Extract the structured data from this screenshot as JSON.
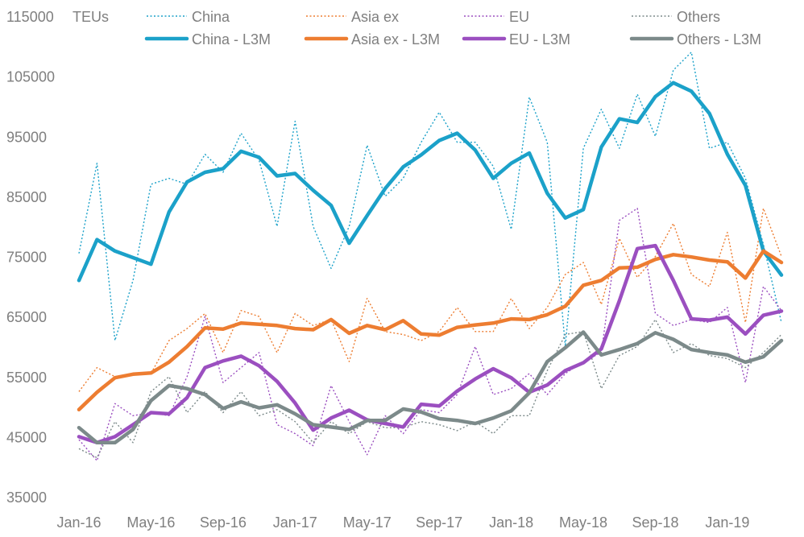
{
  "chart_data": {
    "type": "line",
    "unit_label": "TEUs",
    "ylim": [
      35000,
      115000
    ],
    "y_ticks": [
      35000,
      45000,
      55000,
      65000,
      75000,
      85000,
      95000,
      105000,
      115000
    ],
    "y_tick_labels": [
      "35000",
      "45000",
      "55000",
      "65000",
      "75000",
      "85000",
      "95000",
      "105000",
      "115000"
    ],
    "x_tick_labels": [
      "Jan-16",
      "May-16",
      "Sep-16",
      "Jan-17",
      "May-17",
      "Sep-17",
      "Jan-18",
      "May-18",
      "Sep-18",
      "Jan-19"
    ],
    "x_tick_index": [
      0,
      4,
      8,
      12,
      16,
      20,
      24,
      28,
      32,
      36
    ],
    "x": [
      "Jan-16",
      "Feb-16",
      "Mar-16",
      "Apr-16",
      "May-16",
      "Jun-16",
      "Jul-16",
      "Aug-16",
      "Sep-16",
      "Oct-16",
      "Nov-16",
      "Dec-16",
      "Jan-17",
      "Feb-17",
      "Mar-17",
      "Apr-17",
      "May-17",
      "Jun-17",
      "Jul-17",
      "Aug-17",
      "Sep-17",
      "Oct-17",
      "Nov-17",
      "Dec-17",
      "Jan-18",
      "Feb-18",
      "Mar-18",
      "Apr-18",
      "May-18",
      "Jun-18",
      "Jul-18",
      "Aug-18",
      "Sep-18",
      "Oct-18",
      "Nov-18",
      "Dec-18",
      "Jan-19",
      "Feb-19",
      "Mar-19",
      "Apr-19"
    ],
    "grid": false,
    "legend_position": "top",
    "series": [
      {
        "name": "China",
        "color": "#1ba1c9",
        "style": "dotted",
        "width": 1.4,
        "values": [
          75500,
          90500,
          61000,
          71000,
          87000,
          88000,
          87000,
          92000,
          89000,
          95500,
          91000,
          80000,
          97500,
          80000,
          73000,
          80000,
          93500,
          85000,
          88000,
          94000,
          99000,
          94000,
          94000,
          90000,
          79500,
          101500,
          94000,
          60000,
          93000,
          99500,
          93000,
          102000,
          95000,
          106000,
          109000,
          93000,
          94000,
          88000,
          77000,
          64000
        ]
      },
      {
        "name": "Asia ex",
        "color": "#ed7d31",
        "style": "dotted",
        "width": 1.4,
        "values": [
          52500,
          56500,
          55000,
          55500,
          55500,
          61000,
          63000,
          65500,
          59000,
          66000,
          65000,
          59000,
          65500,
          63500,
          64500,
          57500,
          68000,
          62500,
          62000,
          61000,
          62500,
          66500,
          62500,
          62500,
          68000,
          63000,
          66500,
          72000,
          74000,
          67000,
          78000,
          71500,
          75000,
          80500,
          72000,
          70000,
          79000,
          64000,
          83000,
          75000
        ]
      },
      {
        "name": "EU",
        "color": "#9b4fc0",
        "style": "dotted",
        "width": 1.4,
        "values": [
          44500,
          41000,
          50500,
          48500,
          49000,
          48500,
          55000,
          65000,
          54000,
          56500,
          59000,
          47000,
          45500,
          43500,
          53500,
          47500,
          42000,
          48500,
          45500,
          49500,
          49000,
          52000,
          60000,
          52000,
          53000,
          55500,
          52000,
          55500,
          57500,
          59000,
          81000,
          83000,
          65500,
          63500,
          64500,
          64000,
          66500,
          54000,
          70000,
          66000
        ]
      },
      {
        "name": "Others",
        "color": "#7c8a8a",
        "style": "dotted",
        "width": 1.4,
        "values": [
          43000,
          41500,
          47500,
          44000,
          52500,
          55000,
          49000,
          52500,
          49000,
          52500,
          48500,
          49500,
          47500,
          44000,
          47500,
          45500,
          47500,
          46500,
          46500,
          47500,
          47000,
          46000,
          47500,
          45500,
          48500,
          48500,
          56000,
          62000,
          62500,
          53000,
          58500,
          60000,
          64500,
          59000,
          60500,
          58500,
          58000,
          56500,
          59000,
          62000
        ]
      },
      {
        "name": "China - L3M",
        "color": "#1ba1c9",
        "style": "solid",
        "width": 4.5,
        "values": [
          71000,
          77800,
          75900,
          74800,
          73700,
          82400,
          87400,
          89000,
          89600,
          92500,
          91500,
          88400,
          88800,
          86000,
          83500,
          77200,
          81800,
          86300,
          89900,
          91900,
          94300,
          95500,
          92700,
          88000,
          90500,
          92200,
          85500,
          81400,
          82800,
          93200,
          97900,
          97300,
          101600,
          103900,
          102500,
          98800,
          92000,
          86800,
          75900,
          71900
        ]
      },
      {
        "name": "Asia ex - L3M",
        "color": "#ed7d31",
        "style": "solid",
        "width": 4.5,
        "values": [
          49500,
          52400,
          54800,
          55400,
          55600,
          57400,
          60000,
          63100,
          62900,
          63900,
          63700,
          63500,
          63000,
          62800,
          64500,
          62200,
          63500,
          62800,
          64300,
          62100,
          61900,
          63200,
          63600,
          63900,
          64600,
          64500,
          65300,
          66700,
          70200,
          71000,
          73100,
          73200,
          74500,
          75300,
          74900,
          74400,
          74100,
          71400,
          75900,
          74000
        ]
      },
      {
        "name": "EU - L3M",
        "color": "#9b4fc0",
        "style": "solid",
        "width": 4.5,
        "values": [
          45000,
          44000,
          45000,
          47000,
          49000,
          48800,
          51500,
          56500,
          57600,
          58400,
          56800,
          54200,
          50600,
          46100,
          48100,
          49400,
          47800,
          47200,
          46600,
          50400,
          50100,
          52600,
          54600,
          56300,
          54800,
          52400,
          53600,
          56000,
          57300,
          59600,
          67600,
          76300,
          76800,
          71000,
          64600,
          64400,
          64900,
          62100,
          65200,
          65900
        ]
      },
      {
        "name": "Others - L3M",
        "color": "#7c8a8a",
        "style": "solid",
        "width": 4.5,
        "values": [
          46500,
          44000,
          44000,
          46200,
          51000,
          53500,
          53000,
          52000,
          49700,
          50800,
          49800,
          50300,
          48800,
          47000,
          46600,
          46200,
          47700,
          47700,
          49600,
          49100,
          48000,
          47700,
          47200,
          48100,
          49300,
          52300,
          57500,
          59800,
          62400,
          58600,
          59500,
          60500,
          62300,
          61200,
          59500,
          59000,
          58600,
          57400,
          58300,
          61000
        ]
      }
    ]
  }
}
